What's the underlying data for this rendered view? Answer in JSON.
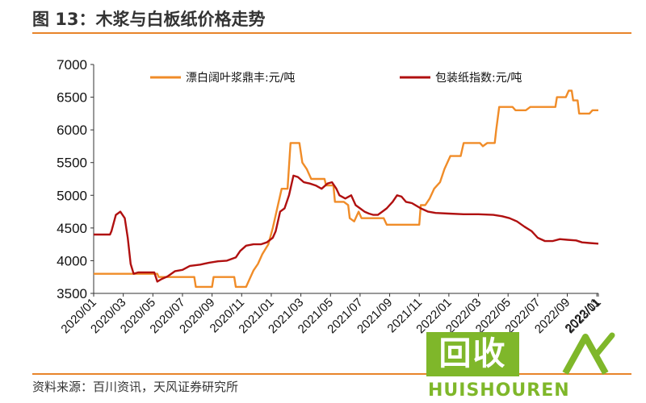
{
  "header": {
    "title": "图 13：木浆与白板纸价格走势"
  },
  "footer": {
    "source": "资料来源：百川资讯，天风证券研究所"
  },
  "watermark": {
    "logo_text": "回收",
    "brand_text": "HUISHOUREN",
    "color": "#7fb72a"
  },
  "colors": {
    "accent_rule": "#e8842a",
    "series_orange": "#f08c28",
    "series_red": "#b01010"
  },
  "chart_data": {
    "type": "line",
    "title": "",
    "xlabel": "",
    "ylabel": "",
    "ylim": [
      3500,
      7000
    ],
    "yticks": [
      3500,
      4000,
      4500,
      5000,
      5500,
      6000,
      6500,
      7000
    ],
    "grid": false,
    "legend_position": "top",
    "xticks": [
      "2020/01",
      "2020/03",
      "2020/05",
      "2020/07",
      "2020/09",
      "2020/11",
      "2021/01",
      "2021/03",
      "2021/05",
      "2021/07",
      "2021/09",
      "2021/11",
      "2022/01",
      "2022/03",
      "2022/05",
      "2022/07",
      "2022/09",
      "2022/11",
      "2023/01"
    ],
    "x_unit": "months since 2020/01",
    "series": [
      {
        "name": "漂白阔叶浆鼎丰:元/吨",
        "color": "#f08c28",
        "points": [
          [
            0,
            3800
          ],
          [
            4.3,
            3800
          ],
          [
            4.4,
            3750
          ],
          [
            6.8,
            3750
          ],
          [
            6.9,
            3600
          ],
          [
            8,
            3600
          ],
          [
            8.1,
            3750
          ],
          [
            9.5,
            3750
          ],
          [
            9.6,
            3600
          ],
          [
            10.3,
            3600
          ],
          [
            10.5,
            3700
          ],
          [
            10.8,
            3850
          ],
          [
            11.1,
            3950
          ],
          [
            11.4,
            4100
          ],
          [
            11.8,
            4250
          ],
          [
            12.1,
            4500
          ],
          [
            12.4,
            4800
          ],
          [
            12.7,
            5100
          ],
          [
            13.1,
            5100
          ],
          [
            13.3,
            5800
          ],
          [
            13.9,
            5800
          ],
          [
            14.1,
            5500
          ],
          [
            14.4,
            5400
          ],
          [
            14.7,
            5250
          ],
          [
            15.6,
            5250
          ],
          [
            15.7,
            5150
          ],
          [
            16.2,
            5150
          ],
          [
            16.3,
            4900
          ],
          [
            16.9,
            4900
          ],
          [
            17.2,
            4850
          ],
          [
            17.3,
            4650
          ],
          [
            17.6,
            4600
          ],
          [
            17.9,
            4750
          ],
          [
            18.1,
            4650
          ],
          [
            19.6,
            4650
          ],
          [
            19.8,
            4550
          ],
          [
            22,
            4550
          ],
          [
            22.1,
            4850
          ],
          [
            22.4,
            4850
          ],
          [
            22.7,
            4950
          ],
          [
            23.0,
            5100
          ],
          [
            23.4,
            5200
          ],
          [
            23.7,
            5400
          ],
          [
            24.1,
            5600
          ],
          [
            24.8,
            5600
          ],
          [
            25.0,
            5800
          ],
          [
            26.1,
            5800
          ],
          [
            26.3,
            5750
          ],
          [
            26.6,
            5800
          ],
          [
            27.1,
            5800
          ],
          [
            27.2,
            6000
          ],
          [
            27.4,
            6350
          ],
          [
            28.3,
            6350
          ],
          [
            28.5,
            6300
          ],
          [
            29.2,
            6300
          ],
          [
            29.5,
            6350
          ],
          [
            31.2,
            6350
          ],
          [
            31.3,
            6500
          ],
          [
            31.9,
            6500
          ],
          [
            32.1,
            6600
          ],
          [
            32.3,
            6600
          ],
          [
            32.4,
            6450
          ],
          [
            32.7,
            6450
          ],
          [
            32.8,
            6250
          ],
          [
            33.5,
            6250
          ],
          [
            33.7,
            6300
          ],
          [
            34.1,
            6300
          ]
        ]
      },
      {
        "name": "包装纸指数:元/吨",
        "color": "#b01010",
        "points": [
          [
            0,
            4400
          ],
          [
            1.1,
            4400
          ],
          [
            1.2,
            4450
          ],
          [
            1.5,
            4700
          ],
          [
            1.8,
            4750
          ],
          [
            2.1,
            4650
          ],
          [
            2.3,
            4350
          ],
          [
            2.5,
            3950
          ],
          [
            2.7,
            3800
          ],
          [
            3.0,
            3820
          ],
          [
            4.1,
            3820
          ],
          [
            4.3,
            3680
          ],
          [
            4.6,
            3720
          ],
          [
            5.0,
            3760
          ],
          [
            5.5,
            3840
          ],
          [
            6.0,
            3860
          ],
          [
            6.5,
            3920
          ],
          [
            7.2,
            3940
          ],
          [
            7.8,
            3970
          ],
          [
            8.4,
            3990
          ],
          [
            9.0,
            4000
          ],
          [
            9.6,
            4050
          ],
          [
            9.9,
            4150
          ],
          [
            10.3,
            4230
          ],
          [
            10.8,
            4250
          ],
          [
            11.3,
            4250
          ],
          [
            11.7,
            4280
          ],
          [
            12.1,
            4350
          ],
          [
            12.3,
            4450
          ],
          [
            12.6,
            4750
          ],
          [
            12.9,
            4800
          ],
          [
            13.2,
            5000
          ],
          [
            13.5,
            5300
          ],
          [
            13.8,
            5280
          ],
          [
            14.2,
            5200
          ],
          [
            14.6,
            5180
          ],
          [
            15.0,
            5150
          ],
          [
            15.4,
            5100
          ],
          [
            15.8,
            5180
          ],
          [
            16.1,
            5200
          ],
          [
            16.4,
            5100
          ],
          [
            16.6,
            5000
          ],
          [
            17.0,
            4950
          ],
          [
            17.4,
            5000
          ],
          [
            17.7,
            4850
          ],
          [
            18.0,
            4800
          ],
          [
            18.3,
            4750
          ],
          [
            18.6,
            4720
          ],
          [
            18.9,
            4700
          ],
          [
            19.2,
            4700
          ],
          [
            19.5,
            4750
          ],
          [
            19.8,
            4800
          ],
          [
            20.2,
            4900
          ],
          [
            20.5,
            5000
          ],
          [
            20.8,
            4980
          ],
          [
            21.1,
            4900
          ],
          [
            21.5,
            4880
          ],
          [
            22.1,
            4800
          ],
          [
            22.6,
            4750
          ],
          [
            23.1,
            4730
          ],
          [
            24.0,
            4720
          ],
          [
            25.0,
            4710
          ],
          [
            26.0,
            4710
          ],
          [
            27.0,
            4700
          ],
          [
            27.6,
            4680
          ],
          [
            28.1,
            4650
          ],
          [
            28.6,
            4600
          ],
          [
            29.1,
            4520
          ],
          [
            29.6,
            4450
          ],
          [
            30.0,
            4350
          ],
          [
            30.5,
            4300
          ],
          [
            31.0,
            4300
          ],
          [
            31.5,
            4330
          ],
          [
            32.0,
            4320
          ],
          [
            32.6,
            4310
          ],
          [
            33.0,
            4280
          ],
          [
            33.5,
            4270
          ],
          [
            34.1,
            4260
          ]
        ]
      }
    ]
  }
}
